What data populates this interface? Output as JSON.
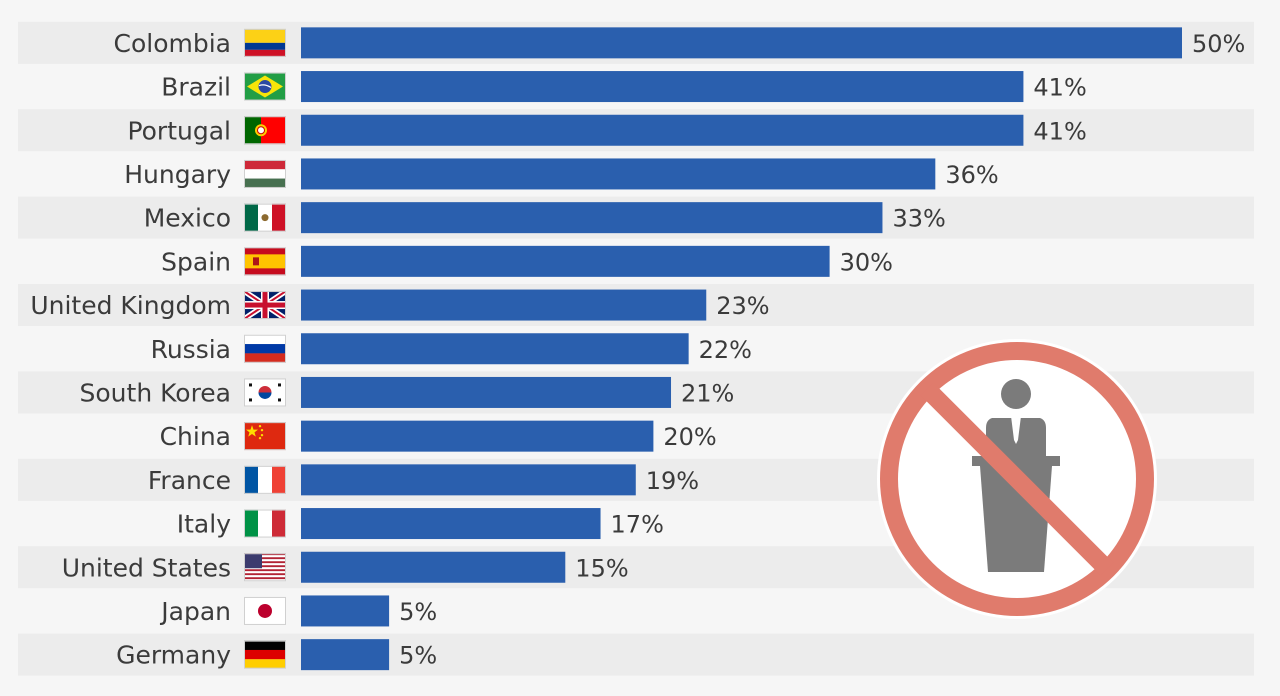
{
  "chart_data": {
    "type": "bar",
    "orientation": "horizontal",
    "categories": [
      "Colombia",
      "Brazil",
      "Portugal",
      "Hungary",
      "Mexico",
      "Spain",
      "United Kingdom",
      "Russia",
      "South Korea",
      "China",
      "France",
      "Italy",
      "United States",
      "Japan",
      "Germany"
    ],
    "values": [
      50,
      41,
      41,
      36,
      33,
      30,
      23,
      22,
      21,
      20,
      19,
      17,
      15,
      5,
      5
    ],
    "value_labels": [
      "50%",
      "41%",
      "41%",
      "36%",
      "33%",
      "30%",
      "23%",
      "22%",
      "21%",
      "20%",
      "19%",
      "17%",
      "15%",
      "5%",
      "5%"
    ],
    "flags": [
      "colombia-flag-icon",
      "brazil-flag-icon",
      "portugal-flag-icon",
      "hungary-flag-icon",
      "mexico-flag-icon",
      "spain-flag-icon",
      "united-kingdom-flag-icon",
      "russia-flag-icon",
      "south-korea-flag-icon",
      "china-flag-icon",
      "france-flag-icon",
      "italy-flag-icon",
      "united-states-flag-icon",
      "japan-flag-icon",
      "germany-flag-icon"
    ],
    "xlim": [
      0,
      50
    ],
    "grid": false,
    "legend": "none",
    "bar_color": "#2a5fae",
    "band_color": "#ececec"
  },
  "overlay": {
    "icon": "no-speaker-podium-icon",
    "ring_color": "#e07b6c",
    "figure_color": "#7b7b7b"
  }
}
